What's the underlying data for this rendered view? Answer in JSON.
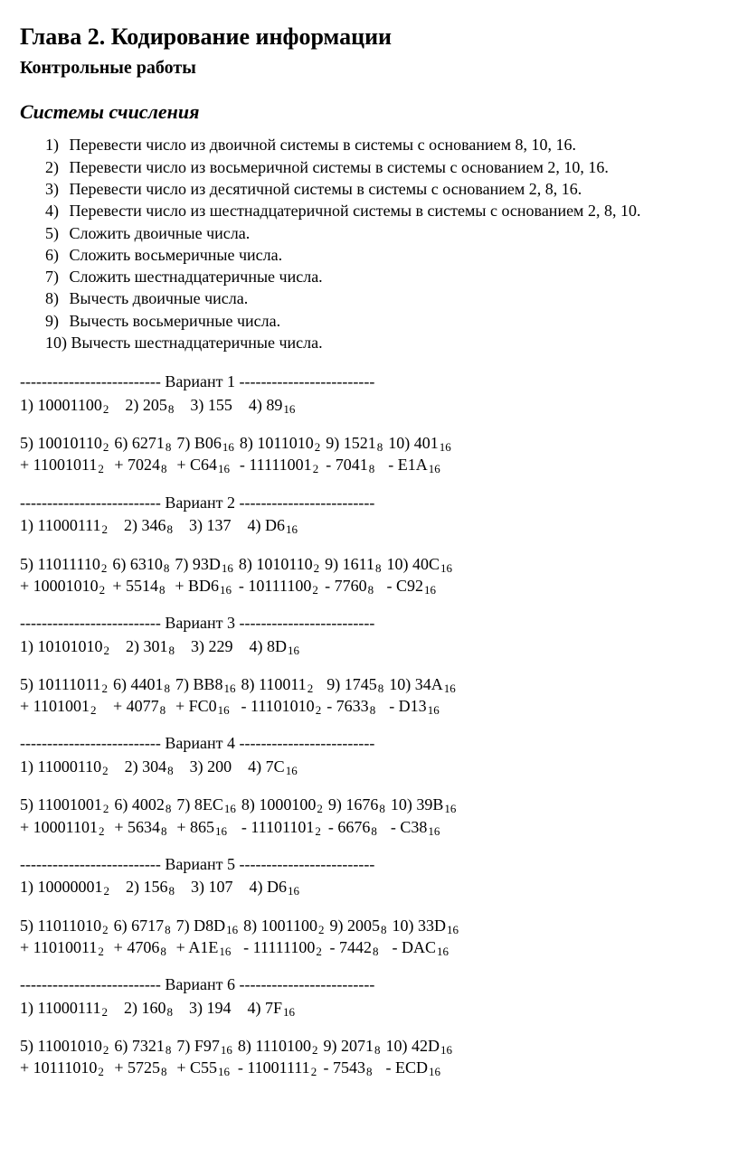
{
  "chapter_title": "Глава 2.   Кодирование информации",
  "subtitle": "Контрольные работы",
  "section_title": "Системы счисления",
  "tasks": [
    "Перевести число из двоичной системы в системы с основанием 8, 10, 16.",
    "Перевести число из восьмеричной системы в системы с основанием 2, 10, 16.",
    "Перевести число из десятичной системы в системы с основанием 2, 8, 16.",
    "Перевести число из шестнадцатеричной системы в системы с основанием 2, 8, 10.",
    "Сложить двоичные числа.",
    "Сложить восьмеричные числа.",
    "Сложить шестнадцатеричные числа.",
    "Вычесть двоичные числа.",
    "Вычесть восьмеричные числа.",
    "Вычесть шестнадцатеричные числа."
  ],
  "sep_left": "--------------------------",
  "sep_right": "-------------------------",
  "variants": [
    {
      "num": 1,
      "r1": [
        {
          "v": "10001100",
          "s": "2"
        },
        {
          "v": "205",
          "s": "8"
        },
        {
          "v": "155",
          "s": ""
        },
        {
          "v": "89",
          "s": "16"
        }
      ],
      "ops": [
        {
          "n": "5)",
          "a": "10010110",
          "as": "2",
          "b": "+ 11001011",
          "bs": "2"
        },
        {
          "n": "6)",
          "a": "6271",
          "as": "8",
          "b": "+ 7024",
          "bs": "8"
        },
        {
          "n": "7)",
          "a": "B06",
          "as": "16",
          "b": "+ C64",
          "bs": "16"
        },
        {
          "n": "8)",
          "a": "1011010",
          "as": "2",
          "b": " - 11111001",
          "bs": "2"
        },
        {
          "n": "9)",
          "a": "1521",
          "as": "8",
          "b": " - 7041",
          "bs": "8"
        },
        {
          "n": "10)",
          "a": "401",
          "as": "16",
          "b": " - E1A",
          "bs": "16"
        }
      ]
    },
    {
      "num": 2,
      "r1": [
        {
          "v": "11000111",
          "s": "2"
        },
        {
          "v": "346",
          "s": "8"
        },
        {
          "v": "137",
          "s": ""
        },
        {
          "v": "D6",
          "s": "16"
        }
      ],
      "ops": [
        {
          "n": "5)",
          "a": "11011110",
          "as": "2",
          "b": "+ 10001010",
          "bs": "2"
        },
        {
          "n": "6)",
          "a": "6310",
          "as": "8",
          "b": "+ 5514",
          "bs": "8"
        },
        {
          "n": "7)",
          "a": "93D",
          "as": "16",
          "b": "+ BD6",
          "bs": "16"
        },
        {
          "n": "8)",
          "a": "1010110",
          "as": "2",
          "b": " - 10111100",
          "bs": "2"
        },
        {
          "n": "9)",
          "a": "1611",
          "as": "8",
          "b": " - 7760",
          "bs": "8"
        },
        {
          "n": "10)",
          "a": "40C",
          "as": "16",
          "b": " - C92",
          "bs": "16"
        }
      ]
    },
    {
      "num": 3,
      "r1": [
        {
          "v": "10101010",
          "s": "2"
        },
        {
          "v": "301",
          "s": "8"
        },
        {
          "v": "229",
          "s": ""
        },
        {
          "v": "8D",
          "s": "16"
        }
      ],
      "ops": [
        {
          "n": "5)",
          "a": "10111011",
          "as": "2",
          "b": "+ 1101001",
          "bs": "2"
        },
        {
          "n": "6)",
          "a": "4401",
          "as": "8",
          "b": "+ 4077",
          "bs": "8"
        },
        {
          "n": "7)",
          "a": "BB8",
          "as": "16",
          "b": "+ FC0",
          "bs": "16"
        },
        {
          "n": "8)",
          "a": "110011",
          "as": "2",
          "b": " - 11101010",
          "bs": "2"
        },
        {
          "n": "9)",
          "a": "1745",
          "as": "8",
          "b": " - 7633",
          "bs": "8"
        },
        {
          "n": "10)",
          "a": "34A",
          "as": "16",
          "b": " - D13",
          "bs": "16"
        }
      ]
    },
    {
      "num": 4,
      "r1": [
        {
          "v": "11000110",
          "s": "2"
        },
        {
          "v": "304",
          "s": "8"
        },
        {
          "v": "200",
          "s": ""
        },
        {
          "v": "7C",
          "s": "16"
        }
      ],
      "ops": [
        {
          "n": "5)",
          "a": "11001001",
          "as": "2",
          "b": "+ 10001101",
          "bs": "2"
        },
        {
          "n": "6)",
          "a": "4002",
          "as": "8",
          "b": "+ 5634",
          "bs": "8"
        },
        {
          "n": "7)",
          "a": "8EC",
          "as": "16",
          "b": "+ 865",
          "bs": "16"
        },
        {
          "n": "8)",
          "a": "1000100",
          "as": "2",
          "b": " - 11101101",
          "bs": "2"
        },
        {
          "n": "9)",
          "a": "1676",
          "as": "8",
          "b": " - 6676",
          "bs": "8"
        },
        {
          "n": "10)",
          "a": "39B",
          "as": "16",
          "b": " - C38",
          "bs": "16"
        }
      ]
    },
    {
      "num": 5,
      "r1": [
        {
          "v": "10000001",
          "s": "2"
        },
        {
          "v": "156",
          "s": "8"
        },
        {
          "v": "107",
          "s": ""
        },
        {
          "v": "D6",
          "s": "16"
        }
      ],
      "ops": [
        {
          "n": "5)",
          "a": "11011010",
          "as": "2",
          "b": "+ 11010011",
          "bs": "2"
        },
        {
          "n": "6)",
          "a": "6717",
          "as": "8",
          "b": "+ 4706",
          "bs": "8"
        },
        {
          "n": "7)",
          "a": "D8D",
          "as": "16",
          "b": "+ A1E",
          "bs": "16"
        },
        {
          "n": "8)",
          "a": "1001100",
          "as": "2",
          "b": " - 11111100",
          "bs": "2"
        },
        {
          "n": "9)",
          "a": "2005",
          "as": "8",
          "b": " - 7442",
          "bs": "8"
        },
        {
          "n": "10)",
          "a": "33D",
          "as": "16",
          "b": " - DAC",
          "bs": "16"
        }
      ]
    },
    {
      "num": 6,
      "r1": [
        {
          "v": "11000111",
          "s": "2"
        },
        {
          "v": "160",
          "s": "8"
        },
        {
          "v": "194",
          "s": ""
        },
        {
          "v": "7F",
          "s": "16"
        }
      ],
      "ops": [
        {
          "n": "5)",
          "a": "11001010",
          "as": "2",
          "b": "+ 10111010",
          "bs": "2"
        },
        {
          "n": "6)",
          "a": "7321",
          "as": "8",
          "b": "+ 5725",
          "bs": "8"
        },
        {
          "n": "7)",
          "a": "F97",
          "as": "16",
          "b": "+ C55",
          "bs": "16"
        },
        {
          "n": "8)",
          "a": "1110100",
          "as": "2",
          "b": " - 11001111",
          "bs": "2"
        },
        {
          "n": "9)",
          "a": "2071",
          "as": "8",
          "b": " - 7543",
          "bs": "8"
        },
        {
          "n": "10)",
          "a": "42D",
          "as": "16",
          "b": " - ECD",
          "bs": "16"
        }
      ]
    }
  ]
}
